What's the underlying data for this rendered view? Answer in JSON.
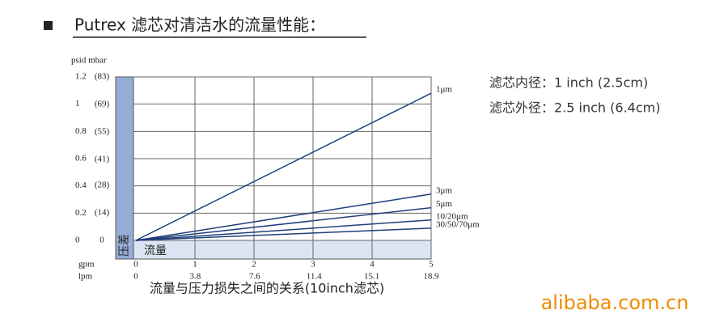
{
  "header": "Putrex 滤芯对清洁水的流量性能：",
  "notes": [
    "滤芯内径：1 inch  (2.5cm)",
    "滤芯外径：2.5 inch (6.4cm)"
  ],
  "watermark": "alibaba.com.cn",
  "chart_data": {
    "type": "line",
    "title": "流量与压力损失之间的关系(10inch滤芯)",
    "y_label": "psid mbar",
    "y_band_label": "压差",
    "x_band_label": "流量",
    "x_label": "gpm",
    "x2_label": "lpm",
    "x": [
      0,
      5
    ],
    "xlim": [
      0,
      5
    ],
    "xticks": [
      0,
      1,
      2,
      3,
      4,
      5
    ],
    "x2lim": [
      0,
      18.9
    ],
    "x2ticks": [
      0,
      3.8,
      7.6,
      11.4,
      15.1,
      18.9
    ],
    "ylim": [
      0,
      1.2
    ],
    "yticks": [
      0,
      0.2,
      0.4,
      0.6,
      0.8,
      1.0,
      1.2
    ],
    "y2lim": [
      0,
      83
    ],
    "y2ticks": [
      {
        "value": 0,
        "label": "0"
      },
      {
        "value": 14,
        "label": "(14)"
      },
      {
        "value": 28,
        "label": "(28)"
      },
      {
        "value": 41,
        "label": "(41)"
      },
      {
        "value": 55,
        "label": "(55)"
      },
      {
        "value": 69,
        "label": "(69)"
      },
      {
        "value": 83,
        "label": "(83)"
      }
    ],
    "grid": true,
    "series": [
      {
        "name": "1μm",
        "color": "#1f3f7a",
        "values": [
          0,
          1.08
        ]
      },
      {
        "name": "3μm",
        "color": "#1f3f7a",
        "values": [
          0,
          0.34
        ]
      },
      {
        "name": "5μm",
        "color": "#1f3f7a",
        "values": [
          0,
          0.24
        ]
      },
      {
        "name": "10/20μm",
        "color": "#1f3f7a",
        "values": [
          0,
          0.15
        ]
      },
      {
        "name": "30/50/70μm",
        "color": "#1f3f7a",
        "values": [
          0,
          0.09
        ]
      }
    ]
  }
}
